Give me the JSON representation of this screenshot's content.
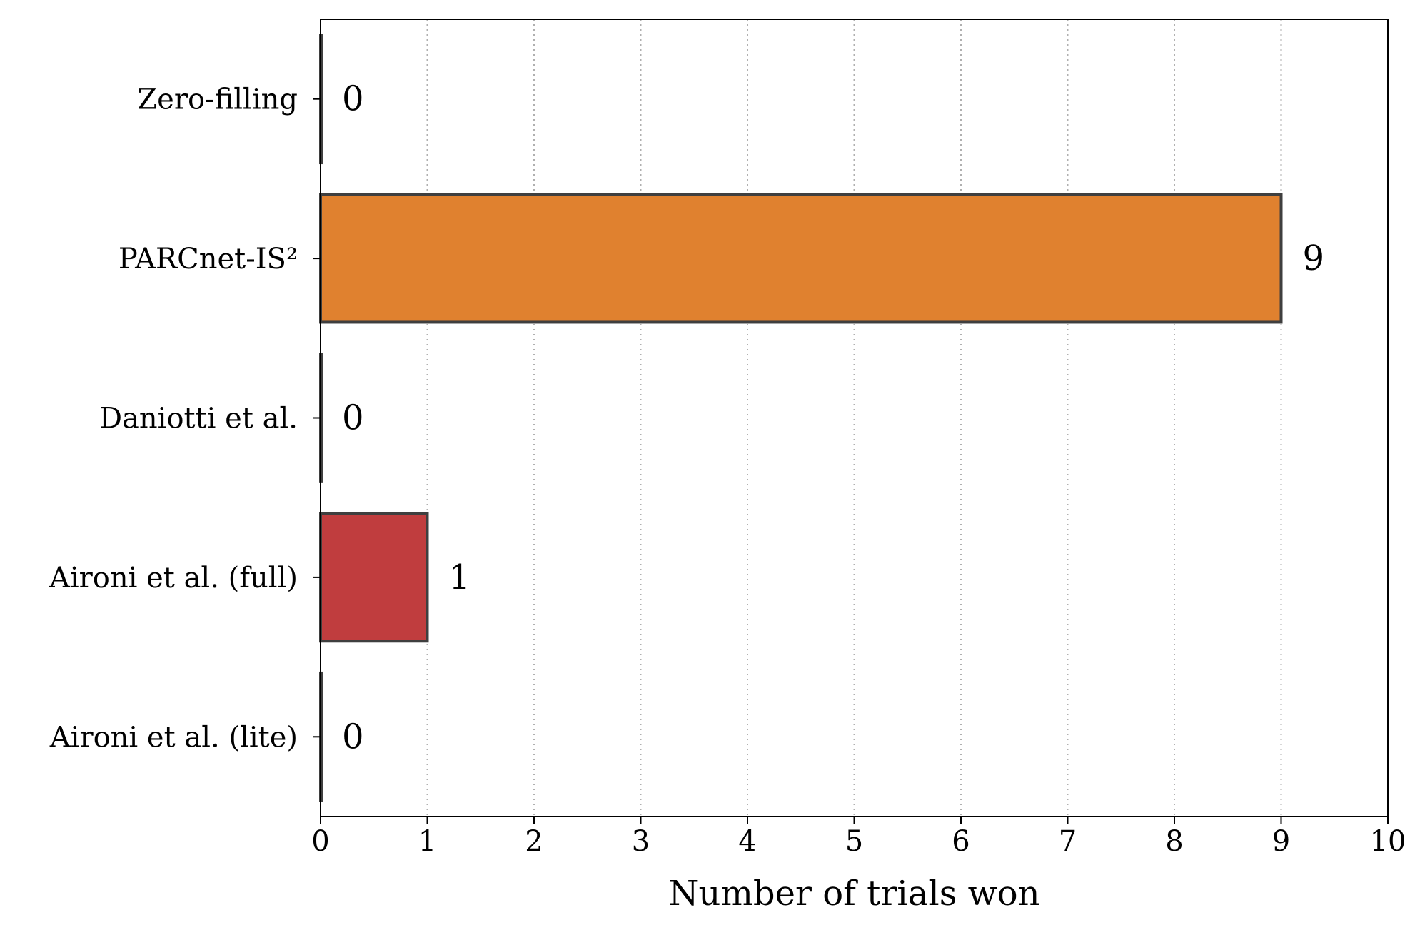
{
  "chart_data": {
    "type": "bar",
    "orientation": "horizontal",
    "categories": [
      "Zero-filling",
      "PARCnet-IS²",
      "Daniotti et al.",
      "Aironi et al. (full)",
      "Aironi et al. (lite)"
    ],
    "values": [
      0,
      9,
      0,
      1,
      0
    ],
    "value_labels": [
      "0",
      "9",
      "0",
      "1",
      "0"
    ],
    "colors": [
      "#3a7ab3",
      "#e0812f",
      "#4f9a47",
      "#c03d3e",
      "#8a6ab8"
    ],
    "xlabel": "Number of trials won",
    "ylabel": "",
    "xlim": [
      0,
      10
    ],
    "x_ticks": [
      "0",
      "1",
      "2",
      "3",
      "4",
      "5",
      "6",
      "7",
      "8",
      "9",
      "10"
    ],
    "grid": "x-dotted",
    "edge_color": "#3f3f3f"
  }
}
